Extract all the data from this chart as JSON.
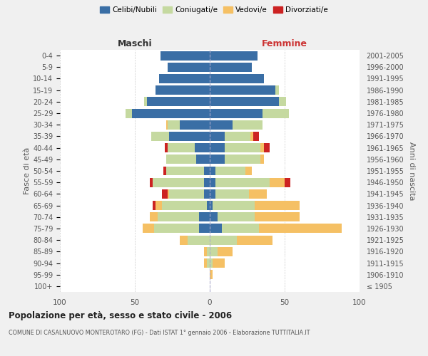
{
  "age_groups": [
    "100+",
    "95-99",
    "90-94",
    "85-89",
    "80-84",
    "75-79",
    "70-74",
    "65-69",
    "60-64",
    "55-59",
    "50-54",
    "45-49",
    "40-44",
    "35-39",
    "30-34",
    "25-29",
    "20-24",
    "15-19",
    "10-14",
    "5-9",
    "0-4"
  ],
  "birth_years": [
    "≤ 1905",
    "1906-1910",
    "1911-1915",
    "1916-1920",
    "1921-1925",
    "1926-1930",
    "1931-1935",
    "1936-1940",
    "1941-1945",
    "1946-1950",
    "1951-1955",
    "1956-1960",
    "1961-1965",
    "1966-1970",
    "1971-1975",
    "1976-1980",
    "1981-1985",
    "1986-1990",
    "1991-1995",
    "1996-2000",
    "2001-2005"
  ],
  "maschi": {
    "celibi": [
      0,
      0,
      0,
      0,
      0,
      7,
      7,
      2,
      4,
      4,
      4,
      9,
      10,
      27,
      20,
      52,
      42,
      36,
      34,
      28,
      33
    ],
    "coniugati": [
      0,
      0,
      2,
      2,
      15,
      30,
      28,
      30,
      23,
      34,
      25,
      20,
      18,
      12,
      8,
      4,
      2,
      0,
      0,
      0,
      0
    ],
    "vedovi": [
      0,
      0,
      2,
      2,
      5,
      8,
      5,
      4,
      1,
      0,
      0,
      0,
      0,
      0,
      1,
      0,
      0,
      0,
      0,
      0,
      0
    ],
    "divorziati": [
      0,
      0,
      0,
      0,
      0,
      0,
      0,
      2,
      4,
      2,
      2,
      0,
      2,
      0,
      0,
      0,
      0,
      0,
      0,
      0,
      0
    ]
  },
  "femmine": {
    "nubili": [
      0,
      0,
      0,
      0,
      0,
      8,
      5,
      2,
      4,
      4,
      4,
      10,
      10,
      10,
      15,
      35,
      46,
      44,
      36,
      28,
      32
    ],
    "coniugate": [
      0,
      0,
      2,
      5,
      18,
      25,
      25,
      28,
      22,
      36,
      20,
      24,
      24,
      17,
      20,
      18,
      5,
      2,
      0,
      0,
      0
    ],
    "vedove": [
      0,
      2,
      8,
      10,
      24,
      55,
      30,
      30,
      12,
      10,
      4,
      2,
      2,
      2,
      0,
      0,
      0,
      0,
      0,
      0,
      0
    ],
    "divorziate": [
      0,
      0,
      0,
      0,
      0,
      0,
      0,
      0,
      0,
      4,
      0,
      0,
      4,
      4,
      0,
      0,
      0,
      0,
      0,
      0,
      0
    ]
  },
  "colors": {
    "celibi": "#3a6ea5",
    "coniugati": "#c5d9a0",
    "vedovi": "#f5c064",
    "divorziati": "#cc2222"
  },
  "xlim": 100,
  "title": "Popolazione per età, sesso e stato civile - 2006",
  "subtitle": "COMUNE DI CASALNUOVO MONTEROTARO (FG) - Dati ISTAT 1° gennaio 2006 - Elaborazione TUTTITALIA.IT",
  "ylabel": "Fasce di età",
  "ylabel_right": "Anni di nascita",
  "legend_labels": [
    "Celibi/Nubili",
    "Coniugati/e",
    "Vedovi/e",
    "Divorziati/e"
  ],
  "bg_color": "#f0f0f0",
  "plot_bg": "#ffffff"
}
